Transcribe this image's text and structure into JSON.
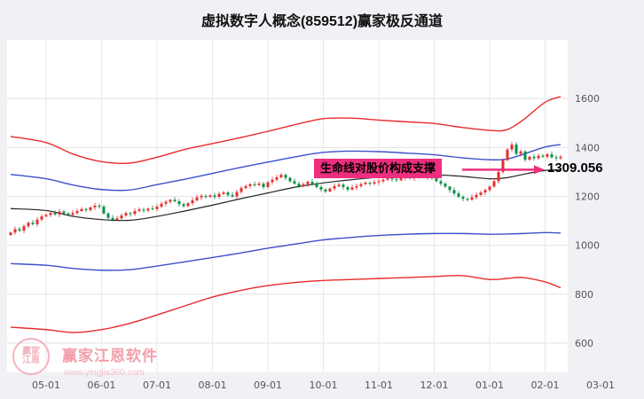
{
  "title": "虚拟数字人概念(859512)赢家极反通道",
  "chart_data": {
    "type": "candlestick",
    "title": "虚拟数字人概念(859512)赢家极反通道",
    "ylabel": "",
    "xlabel": "",
    "ylim": [
      480,
      1840
    ],
    "yticks": [
      600,
      800,
      1000,
      1200,
      1400,
      1600
    ],
    "x_tick_labels": [
      "05-01",
      "06-01",
      "07-01",
      "08-01",
      "09-01",
      "10-01",
      "11-01",
      "12-01",
      "01-01",
      "02-01",
      "03-01"
    ],
    "grid": true,
    "legend": "none",
    "start_month": -0.64,
    "month_step": 0.08,
    "candle_up_color": "#e52e2e",
    "candle_down_color": "#0a8f46",
    "close": [
      1052,
      1066,
      1060,
      1078,
      1092,
      1086,
      1105,
      1118,
      1124,
      1132,
      1126,
      1138,
      1130,
      1124,
      1132,
      1140,
      1148,
      1144,
      1155,
      1162,
      1158,
      1130,
      1112,
      1104,
      1110,
      1122,
      1132,
      1128,
      1140,
      1146,
      1142,
      1150,
      1148,
      1158,
      1170,
      1178,
      1186,
      1180,
      1168,
      1160,
      1172,
      1184,
      1196,
      1202,
      1198,
      1204,
      1198,
      1210,
      1216,
      1206,
      1200,
      1218,
      1234,
      1242,
      1250,
      1246,
      1252,
      1238,
      1258,
      1268,
      1278,
      1288,
      1276,
      1262,
      1252,
      1242,
      1250,
      1260,
      1252,
      1238,
      1228,
      1220,
      1232,
      1242,
      1248,
      1238,
      1228,
      1236,
      1242,
      1250,
      1256,
      1252,
      1258,
      1262,
      1268,
      1274,
      1270,
      1266,
      1274,
      1278,
      1274,
      1280,
      1284,
      1280,
      1278,
      1274,
      1262,
      1252,
      1240,
      1226,
      1212,
      1198,
      1190,
      1186,
      1196,
      1206,
      1216,
      1226,
      1240,
      1262,
      1300,
      1348,
      1392,
      1412,
      1374,
      1384,
      1350,
      1362,
      1356,
      1366,
      1362,
      1372,
      1360,
      1356,
      1362
    ],
    "band_months": [
      -0.64,
      0,
      0.5,
      1,
      1.5,
      2,
      2.5,
      3,
      3.5,
      4,
      4.5,
      5,
      5.5,
      6,
      6.5,
      7,
      7.5,
      8,
      8.3,
      8.6,
      9,
      9.28
    ],
    "bands": {
      "upper_red": {
        "color": "#e82c2c",
        "values": [
          1445,
          1420,
          1372,
          1342,
          1336,
          1360,
          1392,
          1416,
          1440,
          1466,
          1494,
          1518,
          1520,
          1512,
          1505,
          1498,
          1482,
          1470,
          1472,
          1512,
          1585,
          1608
        ]
      },
      "upper_blue": {
        "color": "#3c50c8",
        "values": [
          1290,
          1272,
          1246,
          1228,
          1226,
          1248,
          1270,
          1294,
          1318,
          1340,
          1362,
          1380,
          1385,
          1383,
          1377,
          1370,
          1358,
          1350,
          1352,
          1372,
          1402,
          1412
        ]
      },
      "life_line": {
        "color": "#222222",
        "values": [
          1150,
          1142,
          1118,
          1105,
          1102,
          1118,
          1140,
          1164,
          1190,
          1214,
          1238,
          1255,
          1268,
          1278,
          1285,
          1288,
          1282,
          1272,
          1276,
          1290,
          1306,
          1309
        ]
      },
      "lower_blue": {
        "color": "#3c50c8",
        "values": [
          925,
          918,
          905,
          898,
          900,
          915,
          932,
          950,
          968,
          988,
          1005,
          1022,
          1032,
          1040,
          1045,
          1048,
          1048,
          1045,
          1046,
          1048,
          1052,
          1050
        ]
      },
      "lower_red": {
        "color": "#e82c2c",
        "values": [
          665,
          655,
          643,
          655,
          680,
          715,
          752,
          788,
          815,
          835,
          848,
          856,
          860,
          864,
          868,
          872,
          876,
          860,
          864,
          868,
          850,
          826
        ]
      }
    }
  },
  "annotation": {
    "text": "生命线对股价构成支撑",
    "price": 1309.056,
    "price_label": "1309.056",
    "accent_color": "#ee2e7e"
  },
  "watermark": {
    "brand": "赢家江恩软件",
    "url": "www.yingjia360.com",
    "logo_line1": "赢家",
    "logo_line2": "江恩"
  }
}
